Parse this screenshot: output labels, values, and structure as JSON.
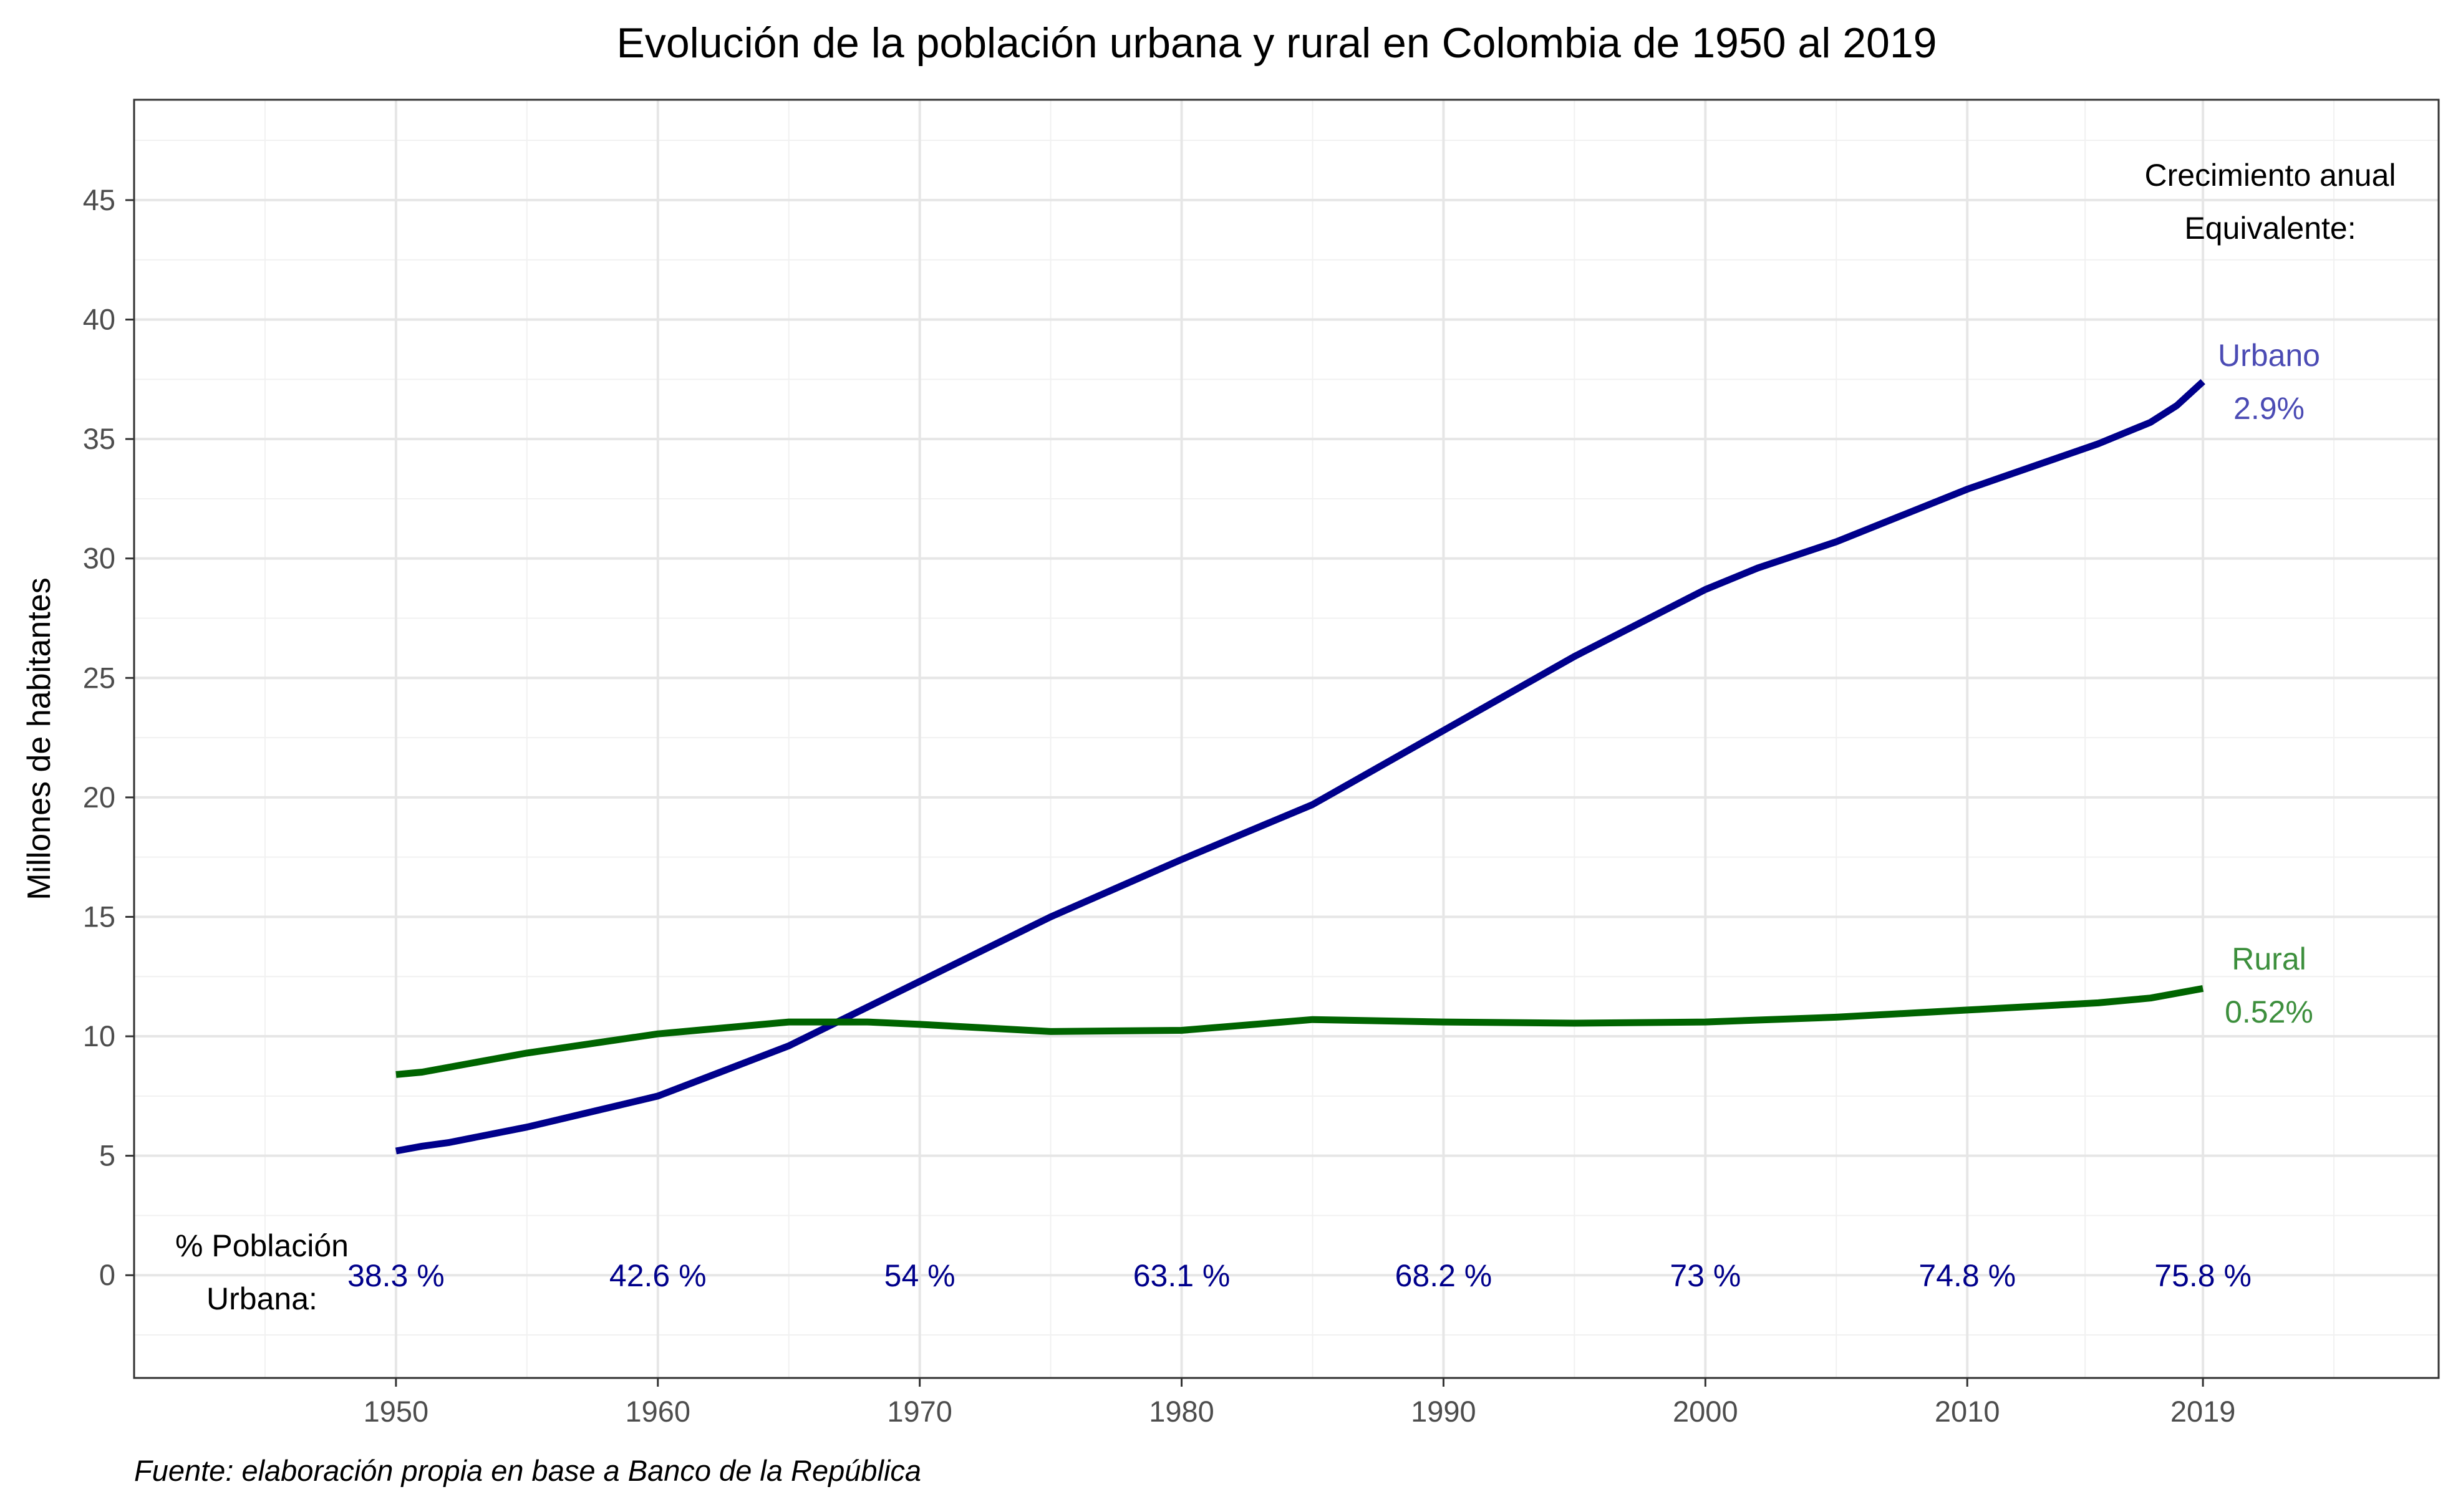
{
  "chart_data": {
    "type": "line",
    "title": "Evolución de la población urbana y rural en Colombia de 1950 al 2019",
    "xlabel": "",
    "ylabel": "Millones de habitantes",
    "caption": "Fuente: elaboración propia en base a Banco de la República",
    "xlim": [
      1940,
      2028
    ],
    "ylim": [
      -4.3,
      49.2
    ],
    "x_ticks": [
      1950,
      1960,
      1970,
      1980,
      1990,
      2000,
      2010,
      2019
    ],
    "x_tick_labels": [
      "1950",
      "1960",
      "1970",
      "1980",
      "1990",
      "2000",
      "2010",
      "2019"
    ],
    "y_ticks": [
      0,
      5,
      10,
      15,
      20,
      25,
      30,
      35,
      40,
      45
    ],
    "y_tick_labels": [
      "0",
      "5",
      "10",
      "15",
      "20",
      "25",
      "30",
      "35",
      "40",
      "45"
    ],
    "grid": true,
    "series": [
      {
        "name": "Urbano",
        "color": "#00008B",
        "x": [
          1950,
          1951,
          1952,
          1955,
          1960,
          1965,
          1970,
          1975,
          1980,
          1985,
          1990,
          1995,
          2000,
          2002,
          2005,
          2010,
          2015,
          2017,
          2018,
          2019
        ],
        "y": [
          5.2,
          5.4,
          5.55,
          6.2,
          7.5,
          9.6,
          12.3,
          15.0,
          17.4,
          19.7,
          22.8,
          25.9,
          28.7,
          29.6,
          30.7,
          32.9,
          34.8,
          35.7,
          36.4,
          37.4
        ]
      },
      {
        "name": "Rural",
        "color": "#006400",
        "x": [
          1950,
          1951,
          1952,
          1955,
          1960,
          1965,
          1968,
          1970,
          1975,
          1980,
          1985,
          1990,
          1995,
          2000,
          2005,
          2010,
          2015,
          2017,
          2019
        ],
        "y": [
          8.4,
          8.5,
          8.7,
          9.3,
          10.1,
          10.6,
          10.6,
          10.5,
          10.2,
          10.25,
          10.7,
          10.6,
          10.55,
          10.6,
          10.8,
          11.1,
          11.4,
          11.6,
          12.0
        ]
      }
    ],
    "annotations": {
      "growth_header": [
        "Crecimiento anual",
        "Equivalente:"
      ],
      "urban_label": "Urbano",
      "urban_rate": "2.9%",
      "rural_label": "Rural",
      "rural_rate": "0.52%",
      "pct_header": [
        "% Población",
        "Urbana:"
      ],
      "urban_share": [
        {
          "x": 1950,
          "label": "38.3 %"
        },
        {
          "x": 1960,
          "label": "42.6 %"
        },
        {
          "x": 1970,
          "label": "54 %"
        },
        {
          "x": 1980,
          "label": "63.1 %"
        },
        {
          "x": 1990,
          "label": "68.2 %"
        },
        {
          "x": 2000,
          "label": "73 %"
        },
        {
          "x": 2010,
          "label": "74.8 %"
        },
        {
          "x": 2019,
          "label": "75.8 %"
        }
      ]
    },
    "colors": {
      "urban_text": "#4B4BB4",
      "rural_text": "#3D8F3D",
      "share_text": "#00008B"
    }
  }
}
